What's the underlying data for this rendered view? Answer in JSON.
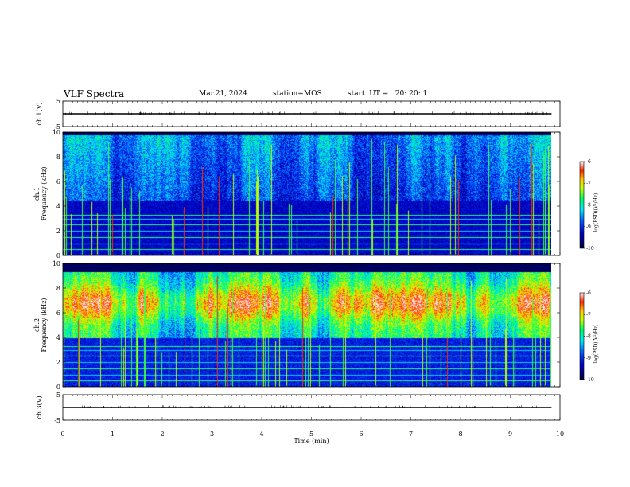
{
  "header": {
    "title": "VLF Spectra",
    "date": "Mar.21, 2024",
    "station": "station=MOS",
    "start": "start  UT =   20: 20: 1"
  },
  "chart_data": [
    {
      "type": "line",
      "panel": "ch1-waveform",
      "ylabel": "ch.1(V)",
      "ylim": [
        -5,
        5
      ],
      "yticks": [
        "5",
        "-5"
      ],
      "xlim": [
        0,
        10
      ],
      "series": [
        {
          "values_constant": 0
        }
      ]
    },
    {
      "type": "heatmap",
      "panel": "ch1-spectrogram",
      "ylabel": "ch.1 Frequency (kHz)",
      "ylim": [
        0,
        10
      ],
      "yticks": [
        "0",
        "2",
        "4",
        "6",
        "8",
        "10"
      ],
      "xlim": [
        0,
        9.83
      ],
      "colorbar": {
        "label": "log(PSD)(V²/Hz)",
        "range": [
          -10,
          -6
        ],
        "ticks": [
          "-6",
          "-7",
          "-8",
          "-9",
          "-10"
        ]
      },
      "hum_lines_khz": [
        0.5,
        1.0,
        1.5,
        2.0,
        2.5,
        3.0,
        3.3
      ],
      "noise_band_khz": [
        4.5,
        9.5
      ]
    },
    {
      "type": "heatmap",
      "panel": "ch2-spectrogram",
      "ylabel": "ch.2 Frequency (kHz)",
      "ylim": [
        0,
        10
      ],
      "yticks": [
        "0",
        "2",
        "4",
        "6",
        "8",
        "10"
      ],
      "xlim": [
        0,
        9.83
      ],
      "colorbar": {
        "label": "log(PSD)(V²/Hz)",
        "range": [
          -10,
          -6
        ],
        "ticks": [
          "-6",
          "-7",
          "-8",
          "-9",
          "-10"
        ]
      },
      "hum_lines_khz": [
        0.5,
        1.0,
        1.5,
        2.0,
        2.5,
        3.0,
        3.3
      ],
      "noise_band_khz": [
        4.0,
        9.0
      ],
      "peak_khz": 6.8
    },
    {
      "type": "line",
      "panel": "ch3-waveform",
      "ylabel": "ch.3(V)",
      "ylim": [
        -5,
        5
      ],
      "yticks": [
        "5",
        "-5"
      ],
      "xlim": [
        0,
        10
      ],
      "series": [
        {
          "values_constant": 0
        }
      ]
    }
  ],
  "xaxis": {
    "label": "Time  (min)",
    "ticks": [
      "0",
      "1",
      "2",
      "3",
      "4",
      "5",
      "6",
      "7",
      "8",
      "9",
      "10"
    ],
    "range": [
      0,
      10
    ]
  },
  "colors": {
    "background": "#ffffff",
    "colormap": [
      "#000080",
      "#0000ff",
      "#00ffff",
      "#00ff00",
      "#ffff00",
      "#ff0000",
      "#ffffff"
    ]
  }
}
